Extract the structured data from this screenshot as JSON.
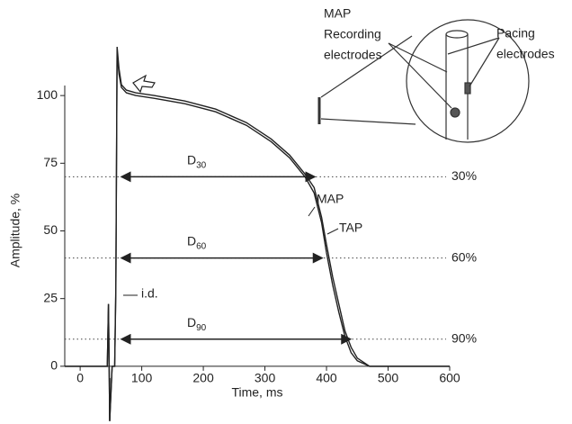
{
  "chart_data": {
    "type": "line",
    "xlabel": "Time, ms",
    "ylabel": "Amplitude, %",
    "xlim": [
      -25,
      600
    ],
    "ylim": [
      -20,
      120
    ],
    "xticks": [
      0,
      100,
      200,
      300,
      400,
      500,
      600
    ],
    "yticks": [
      0,
      25,
      50,
      75,
      100
    ],
    "x": [
      -25,
      40,
      44,
      46,
      48,
      52,
      56,
      58,
      60,
      63,
      67,
      75,
      90,
      120,
      170,
      220,
      270,
      310,
      340,
      365,
      380,
      392,
      400,
      410,
      420,
      430,
      440,
      450,
      470,
      520,
      600
    ],
    "series": [
      {
        "name": "MAP",
        "color": "#222222",
        "values": [
          0,
          0,
          0,
          23,
          -20,
          0,
          0,
          30,
          118,
          110,
          104,
          102,
          101,
          100,
          98,
          95,
          90,
          84,
          78,
          71,
          66,
          55,
          45,
          33,
          23,
          13,
          7,
          3,
          0,
          0,
          0
        ]
      },
      {
        "name": "TAP",
        "color": "#222222",
        "values": [
          0,
          0,
          0,
          23,
          -20,
          0,
          0,
          28,
          116,
          108,
          103,
          101,
          100,
          99,
          97,
          94,
          89,
          83,
          77,
          70,
          64,
          53,
          42,
          30,
          20,
          11,
          5,
          2,
          0,
          0,
          0
        ]
      }
    ],
    "levels": [
      {
        "value": 70,
        "label": "30%",
        "name": "D",
        "sub": "30",
        "start": 67,
        "end": 381
      },
      {
        "value": 40,
        "label": "60%",
        "name": "D",
        "sub": "60",
        "start": 67,
        "end": 393
      },
      {
        "value": 10,
        "label": "90%",
        "name": "D",
        "sub": "90",
        "start": 67,
        "end": 439
      }
    ],
    "annotation": "i.d.",
    "inset": {
      "recording": [
        "MAP",
        "Recording",
        "electrodes"
      ],
      "pacing": [
        "Pacing",
        "electrodes"
      ]
    }
  }
}
